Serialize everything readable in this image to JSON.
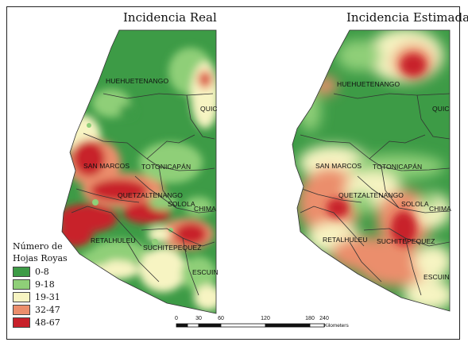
{
  "titles": {
    "left": "Incidencia Real",
    "right": "Incidencia Estimada"
  },
  "departments_left": [
    "HUEHUETENANGO",
    "QUIC",
    "SAN MARCOS",
    "TOTONICAPÁN",
    "QUETZALTENANGO",
    "SOLOLA",
    "CHIMA",
    "RETALHULEU",
    "SUCHITEPEQUEZ",
    "ESCUIN"
  ],
  "departments_right": [
    "HUEHUETENANGO",
    "QUIC",
    "SAN MARCOS",
    "TOTONICAPÁN",
    "QUETZALTENANGO",
    "SOLOLA",
    "CHIMA",
    "RETALHULEU",
    "SUCHITEPEQUEZ",
    "ESCUIN"
  ],
  "legend": {
    "title_line1": "Número de",
    "title_line2": "Hojas Royas",
    "classes": [
      {
        "label": "0-8",
        "color": "#3d9b46"
      },
      {
        "label": "9-18",
        "color": "#8fcf78"
      },
      {
        "label": "19-31",
        "color": "#f7f4c2"
      },
      {
        "label": "32-47",
        "color": "#eb8e6c"
      },
      {
        "label": "48-67",
        "color": "#c8202a"
      }
    ]
  },
  "scale": {
    "ticks": [
      "0",
      "30",
      "60",
      "120",
      "180",
      "240"
    ],
    "unit": "Kilometers"
  }
}
